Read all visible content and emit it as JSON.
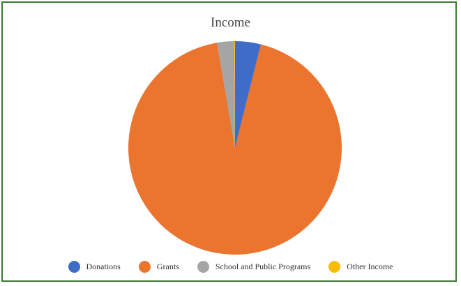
{
  "chart_data": {
    "type": "pie",
    "title": "Income",
    "legend_position": "bottom",
    "categories": [
      "Donations",
      "Grants",
      "School and Public Programs",
      "Other Income"
    ],
    "values": [
      3.9,
      93.4,
      2.6,
      0.1
    ],
    "colors": [
      "#3f6cc8",
      "#eb742e",
      "#a5a5a5",
      "#fbbc04"
    ]
  }
}
